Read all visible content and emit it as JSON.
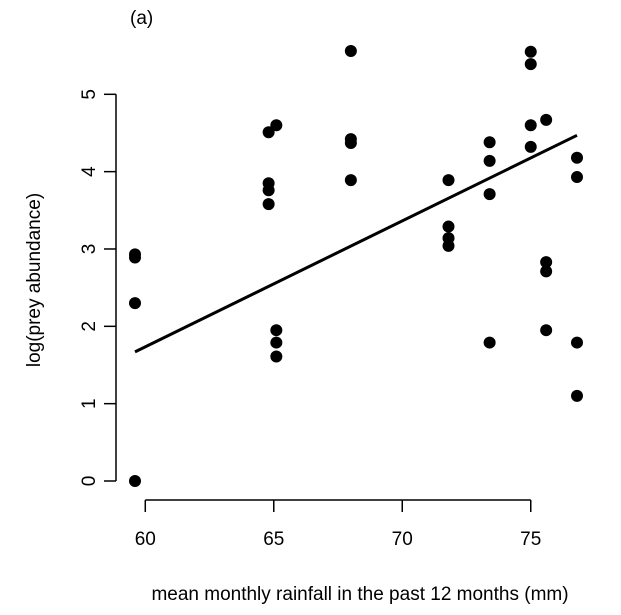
{
  "chart_data": {
    "type": "scatter",
    "panel_label": "(a)",
    "xlabel": "mean monthly rainfall in the past 12 months (mm)",
    "ylabel": "log(prey abundance)",
    "xlim": [
      59.6,
      76.8
    ],
    "ylim": [
      0,
      5.56
    ],
    "x_ticks": [
      60,
      65,
      70,
      75
    ],
    "y_ticks": [
      0,
      1,
      2,
      3,
      4,
      5
    ],
    "grid": false,
    "legend": "none",
    "colors": {
      "points": "#000000",
      "line": "#000000",
      "axes": "#000000"
    },
    "points": [
      {
        "x": 59.6,
        "y": 2.93
      },
      {
        "x": 59.6,
        "y": 2.89
      },
      {
        "x": 59.6,
        "y": 2.3
      },
      {
        "x": 59.6,
        "y": 0.0
      },
      {
        "x": 64.8,
        "y": 4.51
      },
      {
        "x": 64.8,
        "y": 3.85
      },
      {
        "x": 64.8,
        "y": 3.76
      },
      {
        "x": 64.8,
        "y": 3.58
      },
      {
        "x": 65.1,
        "y": 4.6
      },
      {
        "x": 65.1,
        "y": 1.95
      },
      {
        "x": 65.1,
        "y": 1.79
      },
      {
        "x": 65.1,
        "y": 1.61
      },
      {
        "x": 68.0,
        "y": 5.56
      },
      {
        "x": 68.0,
        "y": 4.42
      },
      {
        "x": 68.0,
        "y": 4.37
      },
      {
        "x": 68.0,
        "y": 3.89
      },
      {
        "x": 71.8,
        "y": 3.89
      },
      {
        "x": 71.8,
        "y": 3.29
      },
      {
        "x": 71.8,
        "y": 3.14
      },
      {
        "x": 71.8,
        "y": 3.04
      },
      {
        "x": 73.4,
        "y": 4.38
      },
      {
        "x": 73.4,
        "y": 4.14
      },
      {
        "x": 73.4,
        "y": 3.71
      },
      {
        "x": 73.4,
        "y": 1.79
      },
      {
        "x": 75.0,
        "y": 5.55
      },
      {
        "x": 75.0,
        "y": 5.39
      },
      {
        "x": 75.0,
        "y": 4.6
      },
      {
        "x": 75.0,
        "y": 4.32
      },
      {
        "x": 75.6,
        "y": 4.67
      },
      {
        "x": 75.6,
        "y": 2.83
      },
      {
        "x": 75.6,
        "y": 2.71
      },
      {
        "x": 75.6,
        "y": 1.95
      },
      {
        "x": 76.8,
        "y": 4.18
      },
      {
        "x": 76.8,
        "y": 3.93
      },
      {
        "x": 76.8,
        "y": 1.79
      },
      {
        "x": 76.8,
        "y": 1.1
      }
    ],
    "fit_line": {
      "x": [
        59.6,
        76.8
      ],
      "y": [
        1.67,
        4.47
      ]
    }
  }
}
